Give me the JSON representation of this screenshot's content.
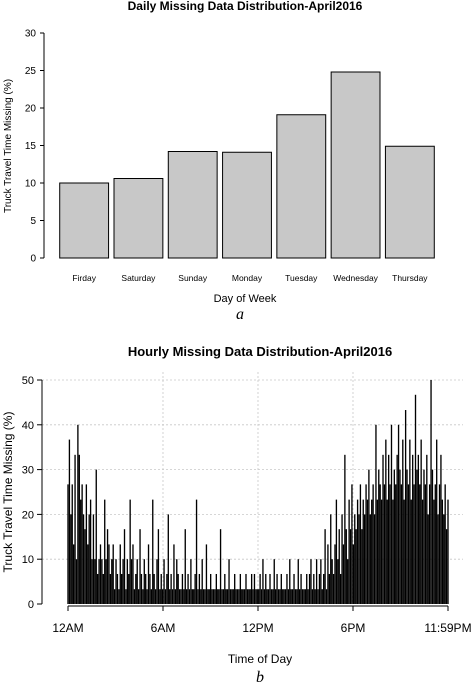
{
  "chart_data": [
    {
      "type": "bar",
      "panel_label": "a",
      "title": "Daily Missing Data Distribution-April2016",
      "xlabel": "Day of Week",
      "ylabel": "Truck Travel Time Missing (%)",
      "ylim": [
        0,
        30
      ],
      "yticks": [
        0,
        5,
        10,
        15,
        20,
        25,
        30
      ],
      "grid": false,
      "colors": {
        "bar_fill": "#c8c8c8",
        "bar_stroke": "#000000"
      },
      "categories": [
        "Firday",
        "Saturday",
        "Sunday",
        "Monday",
        "Tuesday",
        "Wednesday",
        "Thursday"
      ],
      "values": [
        10.0,
        10.6,
        14.2,
        14.1,
        19.1,
        24.8,
        14.9
      ]
    },
    {
      "type": "bar",
      "panel_label": "b",
      "title": "Hourly Missing Data Distribution-April2016",
      "xlabel": "Time of Day",
      "ylabel": "Truck Travel Time Missing (%)",
      "ylim": [
        0,
        50
      ],
      "yticks": [
        0,
        10,
        20,
        30,
        40,
        50
      ],
      "xtick_labels": [
        "12AM",
        "6AM",
        "12PM",
        "6PM",
        "11:59PM"
      ],
      "grid": true,
      "colors": {
        "bar_fill": "#000000",
        "grid": "#c8c8c8"
      },
      "interval_minutes": 5,
      "values": [
        26.7,
        36.7,
        20.0,
        26.7,
        13.3,
        33.3,
        10.0,
        40.0,
        33.3,
        23.3,
        26.7,
        20.0,
        16.7,
        26.7,
        13.3,
        20.0,
        23.3,
        10.0,
        20.0,
        10.0,
        30.0,
        6.7,
        10.0,
        13.3,
        10.0,
        6.7,
        23.3,
        10.0,
        16.7,
        13.3,
        6.7,
        10.0,
        13.3,
        3.3,
        10.0,
        6.7,
        3.3,
        13.3,
        6.7,
        10.0,
        16.7,
        3.3,
        10.0,
        6.7,
        23.3,
        10.0,
        13.3,
        3.3,
        6.7,
        10.0,
        3.3,
        16.7,
        6.7,
        3.3,
        10.0,
        6.7,
        3.3,
        13.3,
        6.7,
        3.3,
        23.3,
        6.7,
        3.3,
        10.0,
        16.7,
        3.3,
        6.7,
        3.3,
        10.0,
        3.3,
        6.7,
        20.0,
        3.3,
        6.7,
        3.3,
        13.3,
        3.3,
        10.0,
        6.7,
        3.3,
        3.3,
        6.7,
        3.3,
        16.7,
        3.3,
        6.7,
        3.3,
        10.0,
        3.3,
        3.3,
        6.7,
        23.3,
        3.3,
        6.7,
        3.3,
        10.0,
        3.3,
        3.3,
        13.3,
        3.3,
        3.3,
        6.7,
        3.3,
        3.3,
        3.3,
        6.7,
        3.3,
        3.3,
        16.7,
        3.3,
        3.3,
        6.7,
        3.3,
        3.3,
        10.0,
        3.3,
        3.3,
        3.3,
        6.7,
        3.3,
        3.3,
        3.3,
        6.7,
        3.3,
        3.3,
        3.3,
        6.7,
        3.3,
        3.3,
        3.3,
        6.7,
        3.3,
        6.7,
        3.3,
        3.3,
        3.3,
        6.7,
        3.3,
        10.0,
        3.3,
        6.7,
        3.3,
        3.3,
        6.7,
        3.3,
        3.3,
        10.0,
        3.3,
        6.7,
        3.3,
        3.3,
        6.7,
        3.3,
        3.3,
        3.3,
        6.7,
        3.3,
        10.0,
        3.3,
        3.3,
        6.7,
        3.3,
        3.3,
        10.0,
        3.3,
        6.7,
        3.3,
        3.3,
        3.3,
        6.7,
        3.3,
        6.7,
        10.0,
        3.3,
        6.7,
        3.3,
        10.0,
        3.3,
        6.7,
        10.0,
        3.3,
        6.7,
        16.7,
        3.3,
        13.3,
        6.7,
        20.0,
        10.0,
        6.7,
        13.3,
        23.3,
        10.0,
        16.7,
        6.7,
        20.0,
        13.3,
        33.3,
        16.7,
        10.0,
        23.3,
        16.7,
        26.7,
        13.3,
        20.0,
        16.7,
        23.3,
        20.0,
        26.7,
        16.7,
        23.3,
        20.0,
        26.7,
        23.3,
        30.0,
        20.0,
        23.3,
        26.7,
        20.0,
        40.0,
        23.3,
        30.0,
        26.7,
        23.3,
        33.3,
        26.7,
        36.7,
        23.3,
        33.3,
        26.7,
        40.0,
        23.3,
        30.0,
        26.7,
        33.3,
        40.0,
        30.0,
        26.7,
        36.7,
        23.3,
        43.3,
        30.0,
        26.7,
        36.7,
        23.3,
        33.3,
        26.7,
        46.7,
        30.0,
        33.3,
        26.7,
        36.7,
        23.3,
        30.0,
        26.7,
        33.3,
        20.0,
        26.7,
        50.0,
        30.0,
        23.3,
        26.7,
        36.7,
        20.0,
        26.7,
        33.3,
        23.3,
        20.0,
        26.7,
        16.7,
        23.3
      ]
    }
  ]
}
